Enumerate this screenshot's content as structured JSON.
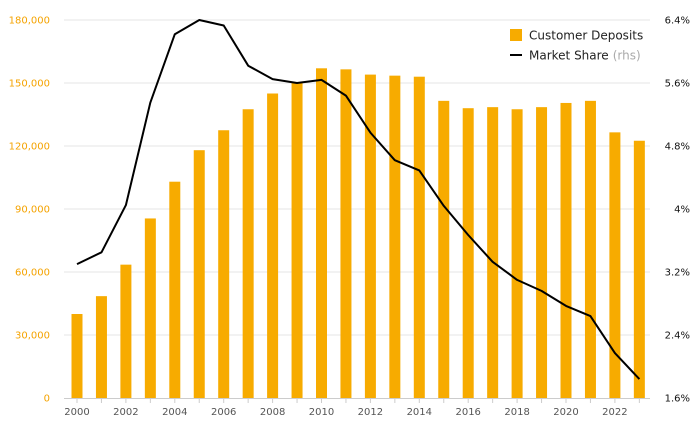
{
  "chart_data": {
    "type": "bar+line",
    "title": "",
    "x": [
      2000,
      2001,
      2002,
      2003,
      2004,
      2005,
      2006,
      2007,
      2008,
      2009,
      2010,
      2011,
      2012,
      2013,
      2014,
      2015,
      2016,
      2017,
      2018,
      2019,
      2020,
      2021,
      2022,
      2023
    ],
    "x_tick_labels": [
      "2000",
      "2002",
      "2004",
      "2006",
      "2008",
      "2010",
      "2012",
      "2014",
      "2016",
      "2018",
      "2020",
      "2022"
    ],
    "series": [
      {
        "name": "Customer Deposits",
        "type": "bar",
        "axis": "left",
        "color": "#f7ab00",
        "values": [
          40000,
          48500,
          63500,
          85500,
          103000,
          118000,
          127500,
          137500,
          145000,
          150000,
          157000,
          156500,
          154000,
          153500,
          153000,
          141500,
          138000,
          138500,
          137500,
          138500,
          140500,
          141500,
          126500,
          122500
        ]
      },
      {
        "name": "Market Share",
        "note": "(rhs)",
        "type": "line",
        "axis": "right",
        "color": "#000000",
        "values": [
          3.3,
          3.45,
          4.05,
          5.35,
          6.22,
          6.4,
          6.33,
          5.82,
          5.65,
          5.6,
          5.64,
          5.44,
          4.97,
          4.62,
          4.49,
          4.04,
          3.67,
          3.33,
          3.1,
          2.96,
          2.77,
          2.64,
          2.17,
          1.84
        ]
      }
    ],
    "y_left": {
      "ticks": [
        0,
        30000,
        60000,
        90000,
        120000,
        150000,
        180000
      ],
      "tick_labels": [
        "0",
        "30,000",
        "60,000",
        "90,000",
        "120,000",
        "150,000",
        "180,000"
      ],
      "range": [
        0,
        180000
      ]
    },
    "y_right": {
      "ticks": [
        1.6,
        2.4,
        3.2,
        4,
        4.8,
        5.6,
        6.4
      ],
      "tick_labels": [
        "1.6%",
        "2.4%",
        "3.2%",
        "4%",
        "4.8%",
        "5.6%",
        "6.4%"
      ],
      "range": [
        1.6,
        6.4
      ]
    },
    "legend": {
      "placement": "top-right"
    },
    "grid": true
  }
}
